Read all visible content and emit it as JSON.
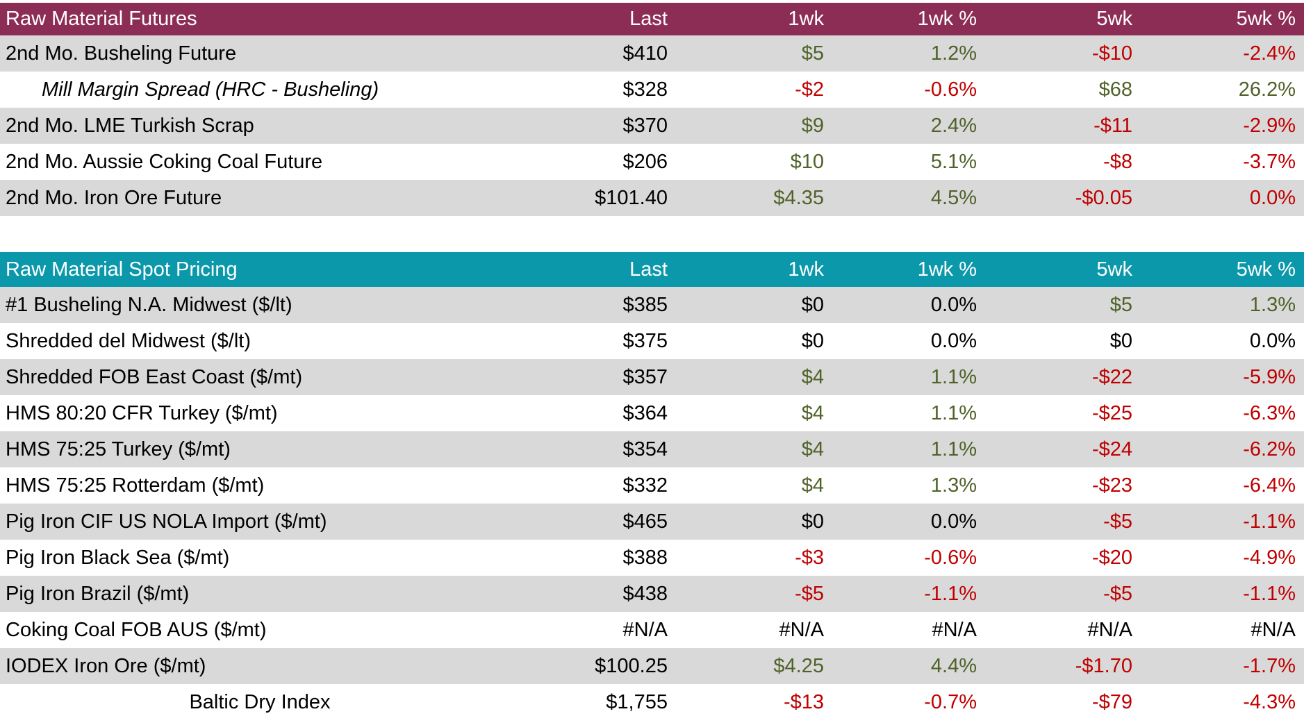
{
  "colors": {
    "futures_header_bg": "#8C2D55",
    "spot_header_bg": "#0A98AA",
    "row_stripe_gray": "#D9D9D9",
    "positive_green": "#4F6228",
    "negative_red": "#C00000"
  },
  "chart_data": [
    {
      "type": "table",
      "title": "Raw Material Futures",
      "header_bg": "#8C2D55",
      "columns": [
        "Last",
        "1wk",
        "1wk %",
        "5wk",
        "5wk %"
      ],
      "rows": [
        {
          "label": "2nd Mo. Busheling Future",
          "style": "normal",
          "values": [
            "$410",
            "$5",
            "1.2%",
            "-$10",
            "-2.4%"
          ],
          "colors": [
            "black",
            "green",
            "green",
            "red",
            "red"
          ]
        },
        {
          "label": "Mill Margin Spread (HRC - Busheling)",
          "style": "indent-italic",
          "values": [
            "$328",
            "-$2",
            "-0.6%",
            "$68",
            "26.2%"
          ],
          "colors": [
            "black",
            "red",
            "red",
            "green",
            "green"
          ]
        },
        {
          "label": "2nd Mo. LME Turkish Scrap",
          "style": "normal",
          "values": [
            "$370",
            "$9",
            "2.4%",
            "-$11",
            "-2.9%"
          ],
          "colors": [
            "black",
            "green",
            "green",
            "red",
            "red"
          ]
        },
        {
          "label": "2nd Mo. Aussie Coking Coal Future",
          "style": "normal",
          "values": [
            "$206",
            "$10",
            "5.1%",
            "-$8",
            "-3.7%"
          ],
          "colors": [
            "black",
            "green",
            "green",
            "red",
            "red"
          ]
        },
        {
          "label": "2nd Mo. Iron Ore Future",
          "style": "normal",
          "values": [
            "$101.40",
            "$4.35",
            "4.5%",
            "-$0.05",
            "0.0%"
          ],
          "colors": [
            "black",
            "green",
            "green",
            "red",
            "red"
          ]
        }
      ]
    },
    {
      "type": "table",
      "title": "Raw Material Spot Pricing",
      "header_bg": "#0A98AA",
      "columns": [
        "Last",
        "1wk",
        "1wk %",
        "5wk",
        "5wk %"
      ],
      "rows": [
        {
          "label": "#1 Busheling N.A. Midwest ($/lt)",
          "style": "normal",
          "values": [
            "$385",
            "$0",
            "0.0%",
            "$5",
            "1.3%"
          ],
          "colors": [
            "black",
            "black",
            "black",
            "green",
            "green"
          ]
        },
        {
          "label": "Shredded del  Midwest ($/lt)",
          "style": "normal",
          "values": [
            "$375",
            "$0",
            "0.0%",
            "$0",
            "0.0%"
          ],
          "colors": [
            "black",
            "black",
            "black",
            "black",
            "black"
          ]
        },
        {
          "label": "Shredded FOB East Coast ($/mt)",
          "style": "normal",
          "values": [
            "$357",
            "$4",
            "1.1%",
            "-$22",
            "-5.9%"
          ],
          "colors": [
            "black",
            "green",
            "green",
            "red",
            "red"
          ]
        },
        {
          "label": "HMS 80:20 CFR Turkey ($/mt)",
          "style": "normal",
          "values": [
            "$364",
            "$4",
            "1.1%",
            "-$25",
            "-6.3%"
          ],
          "colors": [
            "black",
            "green",
            "green",
            "red",
            "red"
          ]
        },
        {
          "label": "HMS 75:25 Turkey ($/mt)",
          "style": "normal",
          "values": [
            "$354",
            "$4",
            "1.1%",
            "-$24",
            "-6.2%"
          ],
          "colors": [
            "black",
            "green",
            "green",
            "red",
            "red"
          ]
        },
        {
          "label": "HMS 75:25 Rotterdam ($/mt)",
          "style": "normal",
          "values": [
            "$332",
            "$4",
            "1.3%",
            "-$23",
            "-6.4%"
          ],
          "colors": [
            "black",
            "green",
            "green",
            "red",
            "red"
          ]
        },
        {
          "label": "Pig Iron CIF US NOLA Import ($/mt)",
          "style": "normal",
          "values": [
            "$465",
            "$0",
            "0.0%",
            "-$5",
            "-1.1%"
          ],
          "colors": [
            "black",
            "black",
            "black",
            "red",
            "red"
          ]
        },
        {
          "label": "Pig Iron Black Sea ($/mt)",
          "style": "normal",
          "values": [
            "$388",
            "-$3",
            "-0.6%",
            "-$20",
            "-4.9%"
          ],
          "colors": [
            "black",
            "red",
            "red",
            "red",
            "red"
          ]
        },
        {
          "label": "Pig Iron Brazil ($/mt)",
          "style": "normal",
          "values": [
            "$438",
            "-$5",
            "-1.1%",
            "-$5",
            "-1.1%"
          ],
          "colors": [
            "black",
            "red",
            "red",
            "red",
            "red"
          ]
        },
        {
          "label": "Coking Coal FOB AUS ($/mt)",
          "style": "normal",
          "values": [
            "#N/A",
            "#N/A",
            "#N/A",
            "#N/A",
            "#N/A"
          ],
          "colors": [
            "black",
            "black",
            "black",
            "black",
            "black"
          ]
        },
        {
          "label": "IODEX  Iron Ore ($/mt)",
          "style": "normal",
          "values": [
            "$100.25",
            "$4.25",
            "4.4%",
            "-$1.70",
            "-1.7%"
          ],
          "colors": [
            "black",
            "green",
            "green",
            "red",
            "red"
          ]
        },
        {
          "label": "Baltic Dry Index",
          "style": "center",
          "values": [
            "$1,755",
            "-$13",
            "-0.7%",
            "-$79",
            "-4.3%"
          ],
          "colors": [
            "black",
            "red",
            "red",
            "red",
            "red"
          ]
        }
      ]
    }
  ]
}
